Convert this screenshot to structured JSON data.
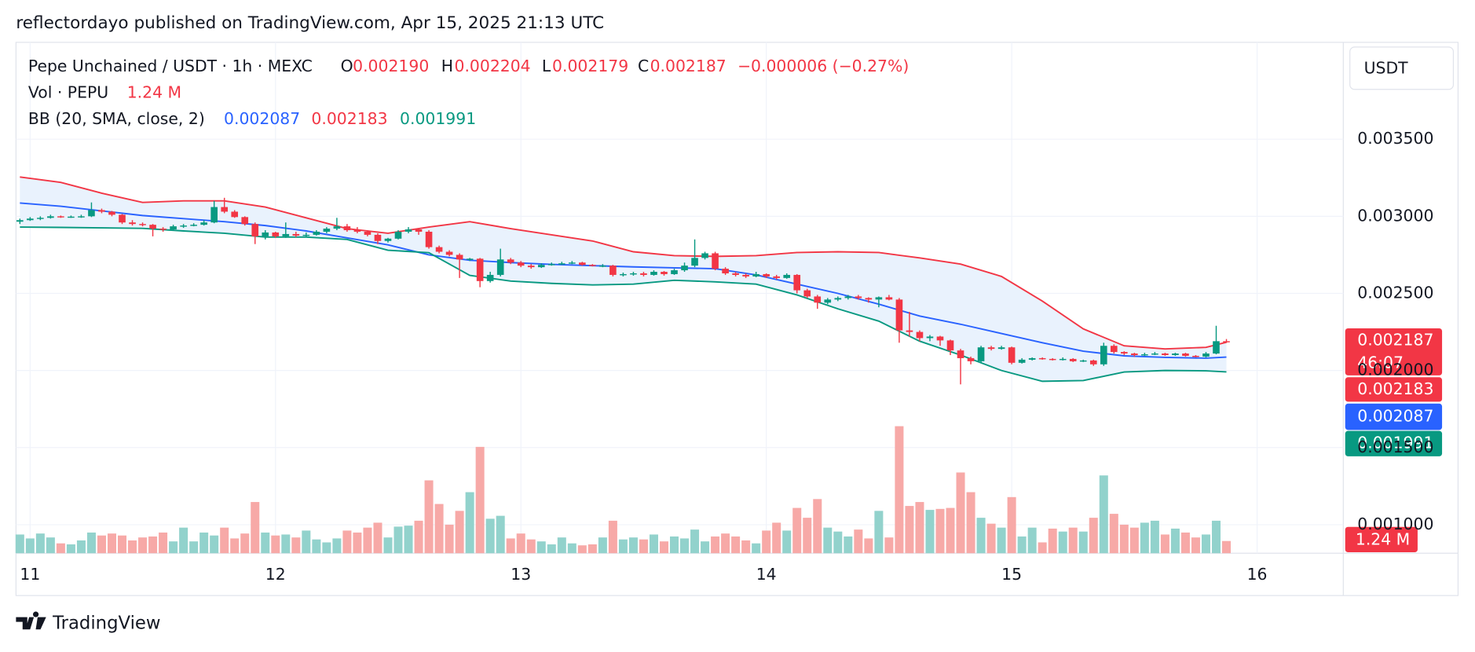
{
  "header": "reflectordayo published on TradingView.com, Apr 15, 2025 21:13 UTC",
  "footer": "TradingView",
  "chart_data": {
    "type": "candlestick",
    "legend": {
      "symbol": "Pepe Unchained / USDT · 1h · MEXC",
      "ohlc": [
        {
          "label": "O",
          "value": "0.002190"
        },
        {
          "label": "H",
          "value": "0.002204"
        },
        {
          "label": "L",
          "value": "0.002179"
        },
        {
          "label": "C",
          "value": "0.002187"
        }
      ],
      "change": "−0.000006 (−0.27%)",
      "volume_title": "Vol · PEPU",
      "volume_value": "1.24 M",
      "bb_title": "BB (20, SMA, close, 2)",
      "bb_values": [
        "0.002087",
        "0.002183",
        "0.001991"
      ]
    },
    "currency": "USDT",
    "up_color": "#089981",
    "down_color": "#f23645",
    "volume_up_color": "#92d2cc",
    "volume_down_color": "#f7a9a7",
    "x": [
      -1,
      0,
      1,
      2,
      3,
      4,
      5,
      6,
      7,
      8,
      9,
      10,
      11,
      12,
      13,
      14,
      15,
      16,
      17,
      18,
      19,
      20,
      21,
      22,
      23,
      24,
      25,
      26,
      27,
      28,
      29,
      30,
      31,
      32,
      33,
      34,
      35,
      36,
      37,
      38,
      39,
      40,
      41,
      42,
      43,
      44,
      45,
      46,
      47,
      48,
      49,
      50,
      51,
      52,
      53,
      54,
      55,
      56,
      57,
      58,
      59,
      60,
      61,
      62,
      63,
      64,
      65,
      66,
      67,
      68,
      69,
      70,
      71,
      72,
      73,
      74,
      75,
      76,
      77,
      78,
      79,
      80,
      81,
      82,
      83,
      84,
      85,
      86,
      87,
      88,
      89,
      90,
      91,
      92,
      93,
      94,
      95,
      96,
      97,
      98,
      99,
      100,
      101,
      102,
      103,
      104,
      105,
      106,
      107,
      108,
      109,
      110,
      111,
      112,
      113,
      114,
      115,
      116,
      117
    ],
    "candles": [
      [
        0.002965,
        0.002985,
        0.00295,
        0.002975
      ],
      [
        0.002975,
        0.002995,
        0.00297,
        0.002985
      ],
      [
        0.002985,
        0.003,
        0.002975,
        0.00299
      ],
      [
        0.00299,
        0.00301,
        0.002985,
        0.003
      ],
      [
        0.003,
        0.003005,
        0.00299,
        0.002995
      ],
      [
        0.002995,
        0.003005,
        0.00299,
        0.002998
      ],
      [
        0.002998,
        0.00301,
        0.00299,
        0.003
      ],
      [
        0.003,
        0.00309,
        0.002995,
        0.00304
      ],
      [
        0.00304,
        0.00305,
        0.00302,
        0.00303
      ],
      [
        0.00303,
        0.003035,
        0.003,
        0.00301
      ],
      [
        0.00301,
        0.003015,
        0.00295,
        0.00296
      ],
      [
        0.00296,
        0.002975,
        0.00294,
        0.00295
      ],
      [
        0.00295,
        0.00296,
        0.002935,
        0.002945
      ],
      [
        0.002945,
        0.00295,
        0.00287,
        0.00292
      ],
      [
        0.00292,
        0.00293,
        0.0029,
        0.002915
      ],
      [
        0.002915,
        0.002945,
        0.00291,
        0.002935
      ],
      [
        0.002935,
        0.00295,
        0.002925,
        0.00294
      ],
      [
        0.00294,
        0.002955,
        0.002935,
        0.002945
      ],
      [
        0.002945,
        0.002975,
        0.00294,
        0.00296
      ],
      [
        0.00296,
        0.0031,
        0.002955,
        0.00306
      ],
      [
        0.00306,
        0.00312,
        0.00302,
        0.00303
      ],
      [
        0.00303,
        0.00304,
        0.00299,
        0.002995
      ],
      [
        0.002995,
        0.003,
        0.00294,
        0.00295
      ],
      [
        0.00295,
        0.00296,
        0.00282,
        0.00287
      ],
      [
        0.00287,
        0.00291,
        0.00285,
        0.002895
      ],
      [
        0.002895,
        0.0029,
        0.00286,
        0.00287
      ],
      [
        0.00287,
        0.00296,
        0.00286,
        0.002885
      ],
      [
        0.002885,
        0.0029,
        0.002865,
        0.002875
      ],
      [
        0.002875,
        0.002895,
        0.002865,
        0.00288
      ],
      [
        0.00288,
        0.00291,
        0.002875,
        0.0029
      ],
      [
        0.0029,
        0.00293,
        0.00289,
        0.00292
      ],
      [
        0.00292,
        0.00299,
        0.00291,
        0.002935
      ],
      [
        0.002935,
        0.00295,
        0.0029,
        0.00291
      ],
      [
        0.00291,
        0.00293,
        0.00289,
        0.0029
      ],
      [
        0.0029,
        0.00291,
        0.00287,
        0.00288
      ],
      [
        0.00288,
        0.00289,
        0.00282,
        0.00284
      ],
      [
        0.00284,
        0.00286,
        0.00283,
        0.002855
      ],
      [
        0.002855,
        0.00291,
        0.00285,
        0.0029
      ],
      [
        0.0029,
        0.00293,
        0.00289,
        0.002915
      ],
      [
        0.002915,
        0.00292,
        0.00288,
        0.0029
      ],
      [
        0.0029,
        0.00291,
        0.00279,
        0.0028
      ],
      [
        0.0028,
        0.00281,
        0.00276,
        0.00277
      ],
      [
        0.00277,
        0.00278,
        0.00274,
        0.00275
      ],
      [
        0.00275,
        0.00276,
        0.0026,
        0.00272
      ],
      [
        0.00272,
        0.00273,
        0.00271,
        0.002725
      ],
      [
        0.002725,
        0.00273,
        0.00254,
        0.00258
      ],
      [
        0.00258,
        0.00264,
        0.00257,
        0.00262
      ],
      [
        0.00262,
        0.00279,
        0.00261,
        0.00272
      ],
      [
        0.00272,
        0.00273,
        0.00269,
        0.0027
      ],
      [
        0.0027,
        0.00271,
        0.00267,
        0.00268
      ],
      [
        0.00268,
        0.00269,
        0.00266,
        0.00267
      ],
      [
        0.00267,
        0.002695,
        0.002665,
        0.002685
      ],
      [
        0.002685,
        0.0027,
        0.00268,
        0.00269
      ],
      [
        0.00269,
        0.002705,
        0.002685,
        0.002695
      ],
      [
        0.002695,
        0.00271,
        0.00269,
        0.0027
      ],
      [
        0.0027,
        0.002705,
        0.00268,
        0.002685
      ],
      [
        0.002685,
        0.00269,
        0.002675,
        0.00268
      ],
      [
        0.00268,
        0.00269,
        0.00267,
        0.00268
      ],
      [
        0.00268,
        0.002685,
        0.00261,
        0.00262
      ],
      [
        0.00262,
        0.002635,
        0.00261,
        0.002625
      ],
      [
        0.002625,
        0.00264,
        0.002615,
        0.00263
      ],
      [
        0.00263,
        0.00264,
        0.00261,
        0.00262
      ],
      [
        0.00262,
        0.00265,
        0.002615,
        0.00264
      ],
      [
        0.00264,
        0.002645,
        0.002615,
        0.002625
      ],
      [
        0.002625,
        0.00266,
        0.00262,
        0.00265
      ],
      [
        0.00265,
        0.0027,
        0.00264,
        0.00268
      ],
      [
        0.00268,
        0.00285,
        0.00267,
        0.00273
      ],
      [
        0.00273,
        0.00277,
        0.00272,
        0.00276
      ],
      [
        0.00276,
        0.00277,
        0.00265,
        0.00266
      ],
      [
        0.00266,
        0.00267,
        0.00262,
        0.00263
      ],
      [
        0.00263,
        0.00264,
        0.00261,
        0.00262
      ],
      [
        0.00262,
        0.00263,
        0.0026,
        0.00261
      ],
      [
        0.00261,
        0.00264,
        0.002605,
        0.002625
      ],
      [
        0.002625,
        0.00263,
        0.0026,
        0.00261
      ],
      [
        0.00261,
        0.00262,
        0.00259,
        0.0026
      ],
      [
        0.0026,
        0.00263,
        0.002595,
        0.00262
      ],
      [
        0.00262,
        0.002625,
        0.0025,
        0.00252
      ],
      [
        0.00252,
        0.00253,
        0.00247,
        0.00248
      ],
      [
        0.00248,
        0.00249,
        0.0024,
        0.00244
      ],
      [
        0.00244,
        0.00247,
        0.00243,
        0.00246
      ],
      [
        0.00246,
        0.00248,
        0.00245,
        0.00247
      ],
      [
        0.00247,
        0.00249,
        0.00246,
        0.00248
      ],
      [
        0.00248,
        0.00249,
        0.00246,
        0.00247
      ],
      [
        0.00247,
        0.002475,
        0.00244,
        0.00246
      ],
      [
        0.00246,
        0.00248,
        0.00241,
        0.002475
      ],
      [
        0.002475,
        0.00249,
        0.002455,
        0.00246
      ],
      [
        0.00246,
        0.00247,
        0.00218,
        0.00226
      ],
      [
        0.00226,
        0.00238,
        0.00222,
        0.00225
      ],
      [
        0.00225,
        0.00226,
        0.00219,
        0.00221
      ],
      [
        0.00221,
        0.00223,
        0.00219,
        0.00222
      ],
      [
        0.00222,
        0.002225,
        0.00216,
        0.002195
      ],
      [
        0.002195,
        0.0022,
        0.0021,
        0.00213
      ],
      [
        0.00213,
        0.00214,
        0.00191,
        0.00208
      ],
      [
        0.00208,
        0.00209,
        0.00204,
        0.00206
      ],
      [
        0.00206,
        0.00216,
        0.00205,
        0.00215
      ],
      [
        0.00215,
        0.00216,
        0.00213,
        0.00214
      ],
      [
        0.00214,
        0.00216,
        0.002135,
        0.00215
      ],
      [
        0.00215,
        0.002155,
        0.00204,
        0.00205
      ],
      [
        0.00205,
        0.00208,
        0.002045,
        0.00207
      ],
      [
        0.00207,
        0.002085,
        0.002065,
        0.00208
      ],
      [
        0.00208,
        0.002085,
        0.00207,
        0.002075
      ],
      [
        0.002075,
        0.00208,
        0.002065,
        0.00207
      ],
      [
        0.00207,
        0.002085,
        0.002065,
        0.002075
      ],
      [
        0.002075,
        0.00208,
        0.002055,
        0.00206
      ],
      [
        0.00206,
        0.00207,
        0.002055,
        0.002065
      ],
      [
        0.002065,
        0.00207,
        0.00203,
        0.00204
      ],
      [
        0.00204,
        0.00218,
        0.00203,
        0.00216
      ],
      [
        0.00216,
        0.00217,
        0.00211,
        0.00212
      ],
      [
        0.00212,
        0.002125,
        0.0021,
        0.00211
      ],
      [
        0.00211,
        0.002115,
        0.00209,
        0.0021
      ],
      [
        0.0021,
        0.002115,
        0.002095,
        0.002105
      ],
      [
        0.002105,
        0.00212,
        0.0021,
        0.00211
      ],
      [
        0.00211,
        0.002115,
        0.002095,
        0.0021
      ],
      [
        0.0021,
        0.002115,
        0.002095,
        0.00211
      ],
      [
        0.00211,
        0.002115,
        0.00209,
        0.002095
      ],
      [
        0.002095,
        0.0021,
        0.002085,
        0.00209
      ],
      [
        0.00209,
        0.00212,
        0.002085,
        0.00211
      ],
      [
        0.00211,
        0.00229,
        0.002105,
        0.00219
      ],
      [
        0.00219,
        0.002204,
        0.002179,
        0.002187
      ]
    ],
    "volume": [
      1.9,
      1.5,
      2.0,
      1.6,
      1.0,
      0.9,
      1.3,
      2.1,
      1.8,
      2.0,
      1.8,
      1.3,
      1.6,
      1.7,
      2.1,
      1.2,
      2.6,
      1.2,
      2.1,
      1.8,
      2.6,
      1.5,
      2.0,
      5.2,
      2.1,
      1.8,
      1.9,
      1.6,
      2.3,
      1.4,
      1.1,
      1.5,
      2.3,
      2.1,
      2.6,
      3.1,
      1.6,
      2.7,
      2.8,
      3.3,
      7.4,
      5.0,
      2.9,
      4.3,
      6.2,
      10.8,
      3.5,
      3.8,
      1.5,
      2.0,
      1.4,
      1.2,
      0.9,
      1.6,
      1.0,
      0.8,
      0.9,
      1.6,
      3.3,
      1.4,
      1.6,
      1.4,
      1.9,
      1.2,
      1.7,
      1.5,
      2.4,
      1.2,
      1.7,
      2.0,
      1.7,
      1.3,
      1.0,
      2.3,
      3.1,
      2.3,
      4.6,
      3.6,
      5.5,
      2.6,
      2.2,
      1.7,
      2.4,
      1.5,
      4.3,
      1.6,
      12.9,
      4.8,
      5.2,
      4.4,
      4.5,
      4.6,
      8.2,
      6.2,
      3.6,
      3.0,
      2.6,
      5.7,
      1.7,
      2.6,
      1.1,
      2.5,
      2.2,
      2.6,
      2.2,
      3.6,
      7.9,
      4.0,
      2.9,
      2.6,
      3.1,
      3.3,
      1.9,
      2.5,
      2.1,
      1.6,
      1.9,
      3.3,
      1.24
    ],
    "bb": {
      "x": [
        -1,
        3,
        7,
        11,
        15,
        19,
        23,
        27,
        31,
        35,
        39,
        43,
        47,
        51,
        55,
        59,
        63,
        67,
        71,
        75,
        79,
        83,
        87,
        91,
        95,
        99,
        103,
        107,
        111,
        115,
        117
      ],
      "fill": "#e9f2fd",
      "series": [
        {
          "color": "#f23645",
          "values": [
            0.003255,
            0.00322,
            0.00315,
            0.00309,
            0.0031,
            0.0031,
            0.00306,
            0.00299,
            0.00292,
            0.00289,
            0.00293,
            0.002965,
            0.00292,
            0.00288,
            0.00284,
            0.00277,
            0.002745,
            0.00274,
            0.002745,
            0.002765,
            0.00277,
            0.002765,
            0.00273,
            0.00269,
            0.00261,
            0.00245,
            0.00227,
            0.00216,
            0.00214,
            0.00215,
            0.002183
          ]
        },
        {
          "color": "#2962ff",
          "values": [
            0.003086,
            0.003065,
            0.003035,
            0.003005,
            0.002985,
            0.002965,
            0.00294,
            0.002905,
            0.00286,
            0.002815,
            0.00275,
            0.002715,
            0.0027,
            0.002688,
            0.00268,
            0.002672,
            0.002666,
            0.00266,
            0.00262,
            0.00256,
            0.0025,
            0.00243,
            0.002353,
            0.0023,
            0.00224,
            0.00218,
            0.002125,
            0.002095,
            0.002085,
            0.00208,
            0.002087
          ]
        },
        {
          "color": "#089981",
          "values": [
            0.00293,
            0.002928,
            0.002925,
            0.002922,
            0.002905,
            0.00289,
            0.002865,
            0.002865,
            0.00285,
            0.00278,
            0.002764,
            0.002617,
            0.00258,
            0.002565,
            0.002555,
            0.00256,
            0.002585,
            0.002575,
            0.00256,
            0.00249,
            0.0024,
            0.00232,
            0.00219,
            0.0021,
            0.002,
            0.00193,
            0.001935,
            0.00199,
            0.002,
            0.001998,
            0.001991
          ]
        }
      ]
    },
    "badges": [
      {
        "label": "0.002187",
        "sub": "46:07",
        "color": "#f23645"
      },
      {
        "label": "0.002183",
        "color": "#f23645"
      },
      {
        "label": "0.002087",
        "color": "#2962ff"
      },
      {
        "label": "0.001991",
        "color": "#089981"
      }
    ],
    "volume_badge_color": "#f23645",
    "xlim": [
      -1.38,
      128.43
    ],
    "ylim": [
      0.000815,
      0.004116
    ],
    "xticks": [
      {
        "value": 0,
        "label": "11"
      },
      {
        "value": 24,
        "label": "12"
      },
      {
        "value": 48,
        "label": "13"
      },
      {
        "value": 72,
        "label": "14"
      },
      {
        "value": 96,
        "label": "15"
      },
      {
        "value": 120,
        "label": "16"
      }
    ],
    "yticks": [
      {
        "value": 0.001,
        "label": "0.001000"
      },
      {
        "value": 0.0015,
        "label": "0.001500"
      },
      {
        "value": 0.002,
        "label": "0.002000"
      },
      {
        "value": 0.0025,
        "label": "0.002500"
      },
      {
        "value": 0.003,
        "label": "0.003000"
      },
      {
        "value": 0.0035,
        "label": "0.003500"
      }
    ],
    "grid": true
  }
}
